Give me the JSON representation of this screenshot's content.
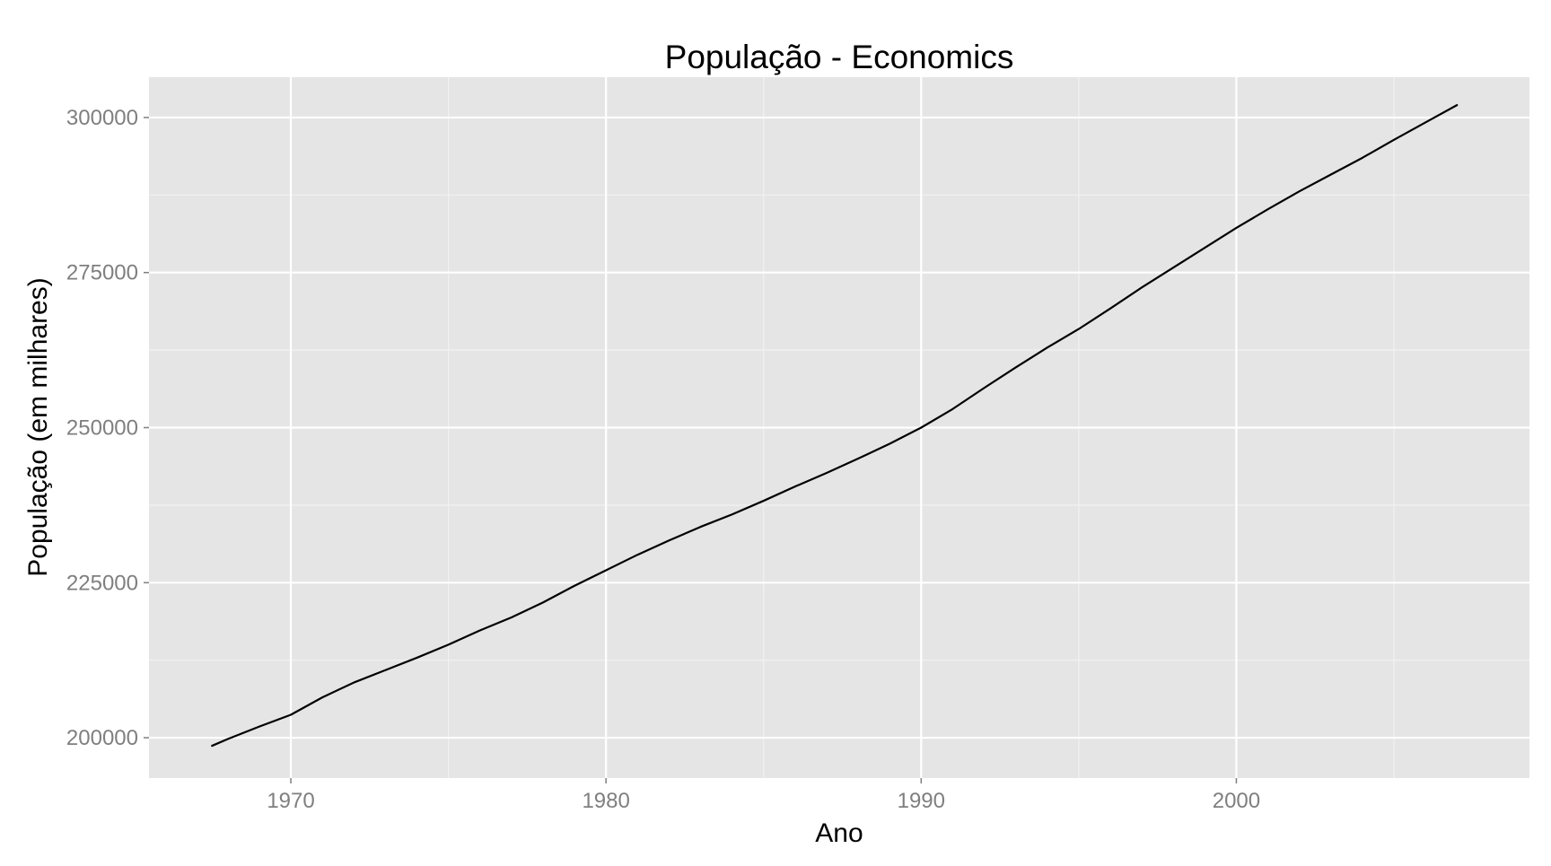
{
  "chart_data": {
    "type": "line",
    "title": "População - Economics",
    "xlabel": "Ano",
    "ylabel": "População (em milhares)",
    "xlim": [
      1965.5,
      2009.3
    ],
    "ylim": [
      193500,
      306500
    ],
    "x_ticks": [
      1970,
      1980,
      1990,
      2000
    ],
    "y_ticks": [
      200000,
      225000,
      250000,
      275000,
      300000
    ],
    "x_tick_labels": [
      "1970",
      "1980",
      "1990",
      "2000"
    ],
    "y_tick_labels": [
      "200000",
      "225000",
      "250000",
      "275000",
      "300000"
    ],
    "x_minor_ticks": [
      1965,
      1975,
      1985,
      1995,
      2005
    ],
    "y_minor_ticks": [
      212500,
      237500,
      262500,
      287500
    ],
    "grid": true,
    "legend": "none",
    "series": [
      {
        "x": [
          1967.5,
          1968,
          1969,
          1970,
          1971,
          1972,
          1973,
          1974,
          1975,
          1976,
          1977,
          1978,
          1979,
          1980,
          1981,
          1982,
          1983,
          1984,
          1985,
          1986,
          1987,
          1988,
          1989,
          1990,
          1991,
          1992,
          1993,
          1994,
          1995,
          1996,
          1997,
          1998,
          1999,
          2000,
          2001,
          2002,
          2003,
          2004,
          2005,
          2006,
          2007
        ],
        "y": [
          198700,
          199800,
          201800,
          203700,
          206500,
          208900,
          210900,
          212900,
          215000,
          217300,
          219400,
          221800,
          224500,
          227000,
          229500,
          231800,
          234000,
          236000,
          238200,
          240500,
          242700,
          245000,
          247400,
          250000,
          253000,
          256400,
          259700,
          262900,
          265900,
          269200,
          272600,
          275800,
          279000,
          282200,
          285200,
          288100,
          290800,
          293500,
          296400,
          299200,
          302000
        ]
      }
    ],
    "colors": {
      "panel_background": "#e5e5e5",
      "grid_major": "#ffffff",
      "grid_minor": "#f2f2f2",
      "line": "#000000",
      "tick_label": "#7f7f7f",
      "text": "#000000"
    }
  }
}
